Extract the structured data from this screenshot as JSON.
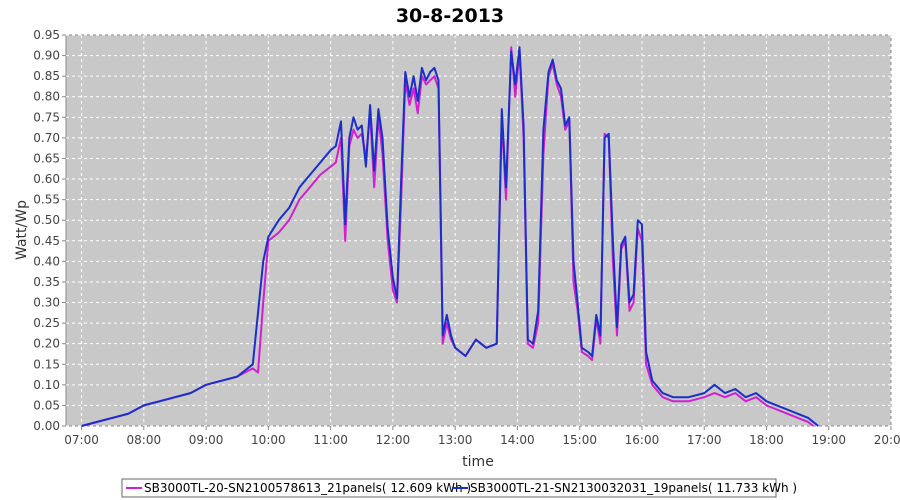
{
  "chart_data": {
    "type": "line",
    "title": "30-8-2013",
    "xlabel": "time",
    "ylabel": "Watt/Wp",
    "xlim": [
      "06:45",
      "20:00"
    ],
    "ylim": [
      0,
      0.95
    ],
    "x_ticks": [
      "07:00",
      "08:00",
      "09:00",
      "10:00",
      "11:00",
      "12:00",
      "13:00",
      "14:00",
      "15:00",
      "16:00",
      "17:00",
      "18:00",
      "19:00",
      "20:00"
    ],
    "y_ticks": [
      "0.00",
      "0.05",
      "0.10",
      "0.15",
      "0.20",
      "0.25",
      "0.30",
      "0.35",
      "0.40",
      "0.45",
      "0.50",
      "0.55",
      "0.60",
      "0.65",
      "0.70",
      "0.75",
      "0.80",
      "0.85",
      "0.90",
      "0.95"
    ],
    "grid": true,
    "legend_position": "bottom",
    "series": [
      {
        "name": "SB3000TL-20-SN2100578613_21panels( 12.609 kWh )",
        "color": "#d020d0",
        "points": [
          [
            "07:00",
            0.0
          ],
          [
            "07:15",
            0.01
          ],
          [
            "07:30",
            0.02
          ],
          [
            "07:45",
            0.03
          ],
          [
            "08:00",
            0.05
          ],
          [
            "08:15",
            0.06
          ],
          [
            "08:30",
            0.07
          ],
          [
            "08:45",
            0.08
          ],
          [
            "09:00",
            0.1
          ],
          [
            "09:15",
            0.11
          ],
          [
            "09:30",
            0.12
          ],
          [
            "09:45",
            0.14
          ],
          [
            "09:50",
            0.13
          ],
          [
            "09:55",
            0.3
          ],
          [
            "10:00",
            0.45
          ],
          [
            "10:10",
            0.47
          ],
          [
            "10:20",
            0.5
          ],
          [
            "10:30",
            0.55
          ],
          [
            "10:40",
            0.58
          ],
          [
            "10:50",
            0.61
          ],
          [
            "11:00",
            0.63
          ],
          [
            "11:05",
            0.64
          ],
          [
            "11:10",
            0.7
          ],
          [
            "11:14",
            0.45
          ],
          [
            "11:18",
            0.68
          ],
          [
            "11:22",
            0.72
          ],
          [
            "11:26",
            0.7
          ],
          [
            "11:30",
            0.71
          ],
          [
            "11:34",
            0.65
          ],
          [
            "11:38",
            0.76
          ],
          [
            "11:42",
            0.58
          ],
          [
            "11:46",
            0.75
          ],
          [
            "11:50",
            0.66
          ],
          [
            "11:55",
            0.45
          ],
          [
            "12:00",
            0.33
          ],
          [
            "12:04",
            0.3
          ],
          [
            "12:08",
            0.55
          ],
          [
            "12:12",
            0.84
          ],
          [
            "12:16",
            0.78
          ],
          [
            "12:20",
            0.82
          ],
          [
            "12:24",
            0.76
          ],
          [
            "12:28",
            0.85
          ],
          [
            "12:32",
            0.83
          ],
          [
            "12:36",
            0.84
          ],
          [
            "12:40",
            0.85
          ],
          [
            "12:44",
            0.82
          ],
          [
            "12:48",
            0.2
          ],
          [
            "12:52",
            0.25
          ],
          [
            "12:56",
            0.21
          ],
          [
            "13:00",
            0.19
          ],
          [
            "13:10",
            0.17
          ],
          [
            "13:20",
            0.21
          ],
          [
            "13:30",
            0.19
          ],
          [
            "13:40",
            0.2
          ],
          [
            "13:45",
            0.75
          ],
          [
            "13:49",
            0.55
          ],
          [
            "13:54",
            0.92
          ],
          [
            "13:58",
            0.8
          ],
          [
            "14:02",
            0.91
          ],
          [
            "14:06",
            0.7
          ],
          [
            "14:10",
            0.2
          ],
          [
            "14:15",
            0.19
          ],
          [
            "14:20",
            0.25
          ],
          [
            "14:25",
            0.66
          ],
          [
            "14:30",
            0.85
          ],
          [
            "14:34",
            0.88
          ],
          [
            "14:38",
            0.83
          ],
          [
            "14:42",
            0.8
          ],
          [
            "14:46",
            0.72
          ],
          [
            "14:50",
            0.74
          ],
          [
            "14:54",
            0.35
          ],
          [
            "14:58",
            0.28
          ],
          [
            "15:02",
            0.18
          ],
          [
            "15:08",
            0.17
          ],
          [
            "15:12",
            0.16
          ],
          [
            "15:16",
            0.26
          ],
          [
            "15:20",
            0.2
          ],
          [
            "15:24",
            0.71
          ],
          [
            "15:28",
            0.7
          ],
          [
            "15:32",
            0.4
          ],
          [
            "15:36",
            0.22
          ],
          [
            "15:40",
            0.43
          ],
          [
            "15:44",
            0.45
          ],
          [
            "15:48",
            0.28
          ],
          [
            "15:52",
            0.3
          ],
          [
            "15:56",
            0.48
          ],
          [
            "16:00",
            0.45
          ],
          [
            "16:04",
            0.15
          ],
          [
            "16:10",
            0.1
          ],
          [
            "16:20",
            0.07
          ],
          [
            "16:30",
            0.06
          ],
          [
            "16:45",
            0.06
          ],
          [
            "17:00",
            0.07
          ],
          [
            "17:10",
            0.08
          ],
          [
            "17:20",
            0.07
          ],
          [
            "17:30",
            0.08
          ],
          [
            "17:40",
            0.06
          ],
          [
            "17:50",
            0.07
          ],
          [
            "18:00",
            0.05
          ],
          [
            "18:10",
            0.04
          ],
          [
            "18:20",
            0.03
          ],
          [
            "18:30",
            0.02
          ],
          [
            "18:40",
            0.01
          ],
          [
            "18:45",
            0.0
          ]
        ]
      },
      {
        "name": "SB3000TL-21-SN2130032031_19panels( 11.733 kWh )",
        "color": "#1a2fc8",
        "points": [
          [
            "07:00",
            0.0
          ],
          [
            "07:15",
            0.01
          ],
          [
            "07:30",
            0.02
          ],
          [
            "07:45",
            0.03
          ],
          [
            "08:00",
            0.05
          ],
          [
            "08:15",
            0.06
          ],
          [
            "08:30",
            0.07
          ],
          [
            "08:45",
            0.08
          ],
          [
            "09:00",
            0.1
          ],
          [
            "09:15",
            0.11
          ],
          [
            "09:30",
            0.12
          ],
          [
            "09:45",
            0.15
          ],
          [
            "09:55",
            0.4
          ],
          [
            "10:00",
            0.46
          ],
          [
            "10:10",
            0.5
          ],
          [
            "10:20",
            0.53
          ],
          [
            "10:30",
            0.58
          ],
          [
            "10:40",
            0.61
          ],
          [
            "10:50",
            0.64
          ],
          [
            "11:00",
            0.67
          ],
          [
            "11:05",
            0.68
          ],
          [
            "11:10",
            0.74
          ],
          [
            "11:14",
            0.49
          ],
          [
            "11:18",
            0.7
          ],
          [
            "11:22",
            0.75
          ],
          [
            "11:26",
            0.72
          ],
          [
            "11:30",
            0.73
          ],
          [
            "11:34",
            0.63
          ],
          [
            "11:38",
            0.78
          ],
          [
            "11:42",
            0.62
          ],
          [
            "11:46",
            0.77
          ],
          [
            "11:50",
            0.7
          ],
          [
            "11:55",
            0.48
          ],
          [
            "12:00",
            0.36
          ],
          [
            "12:04",
            0.31
          ],
          [
            "12:08",
            0.6
          ],
          [
            "12:12",
            0.86
          ],
          [
            "12:16",
            0.8
          ],
          [
            "12:20",
            0.85
          ],
          [
            "12:24",
            0.79
          ],
          [
            "12:28",
            0.87
          ],
          [
            "12:32",
            0.84
          ],
          [
            "12:36",
            0.86
          ],
          [
            "12:40",
            0.87
          ],
          [
            "12:44",
            0.84
          ],
          [
            "12:48",
            0.22
          ],
          [
            "12:52",
            0.27
          ],
          [
            "12:56",
            0.22
          ],
          [
            "13:00",
            0.19
          ],
          [
            "13:10",
            0.17
          ],
          [
            "13:20",
            0.21
          ],
          [
            "13:30",
            0.19
          ],
          [
            "13:40",
            0.2
          ],
          [
            "13:45",
            0.77
          ],
          [
            "13:49",
            0.58
          ],
          [
            "13:54",
            0.91
          ],
          [
            "13:58",
            0.83
          ],
          [
            "14:02",
            0.92
          ],
          [
            "14:06",
            0.73
          ],
          [
            "14:10",
            0.21
          ],
          [
            "14:15",
            0.2
          ],
          [
            "14:20",
            0.28
          ],
          [
            "14:25",
            0.72
          ],
          [
            "14:30",
            0.86
          ],
          [
            "14:34",
            0.89
          ],
          [
            "14:38",
            0.84
          ],
          [
            "14:42",
            0.82
          ],
          [
            "14:46",
            0.73
          ],
          [
            "14:50",
            0.75
          ],
          [
            "14:54",
            0.4
          ],
          [
            "14:58",
            0.3
          ],
          [
            "15:02",
            0.19
          ],
          [
            "15:08",
            0.18
          ],
          [
            "15:12",
            0.17
          ],
          [
            "15:16",
            0.27
          ],
          [
            "15:20",
            0.22
          ],
          [
            "15:24",
            0.7
          ],
          [
            "15:28",
            0.71
          ],
          [
            "15:32",
            0.45
          ],
          [
            "15:36",
            0.24
          ],
          [
            "15:40",
            0.44
          ],
          [
            "15:44",
            0.46
          ],
          [
            "15:48",
            0.3
          ],
          [
            "15:52",
            0.32
          ],
          [
            "15:56",
            0.5
          ],
          [
            "16:00",
            0.49
          ],
          [
            "16:04",
            0.18
          ],
          [
            "16:10",
            0.11
          ],
          [
            "16:20",
            0.08
          ],
          [
            "16:30",
            0.07
          ],
          [
            "16:45",
            0.07
          ],
          [
            "17:00",
            0.08
          ],
          [
            "17:10",
            0.1
          ],
          [
            "17:20",
            0.08
          ],
          [
            "17:30",
            0.09
          ],
          [
            "17:40",
            0.07
          ],
          [
            "17:50",
            0.08
          ],
          [
            "18:00",
            0.06
          ],
          [
            "18:10",
            0.05
          ],
          [
            "18:20",
            0.04
          ],
          [
            "18:30",
            0.03
          ],
          [
            "18:40",
            0.02
          ],
          [
            "18:50",
            0.0
          ]
        ]
      }
    ]
  }
}
